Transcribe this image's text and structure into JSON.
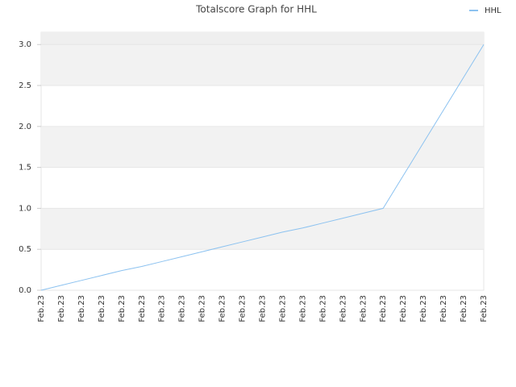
{
  "chart_data": {
    "type": "line",
    "title": "Totalscore Graph for HHL",
    "categories": [
      "Feb.23",
      "Feb.23",
      "Feb.23",
      "Feb.23",
      "Feb.23",
      "Feb.23",
      "Feb.23",
      "Feb.23",
      "Feb.23",
      "Feb.23",
      "Feb.23",
      "Feb.23",
      "Feb.23",
      "Feb.23",
      "Feb.23",
      "Feb.23",
      "Feb.23",
      "Feb.23",
      "Feb.23",
      "Feb.23",
      "Feb.23",
      "Feb.23",
      "Feb.23"
    ],
    "series": [
      {
        "name": "HHL",
        "color": "#8cc2f0",
        "values": [
          0,
          0.06,
          0.12,
          0.18,
          0.24,
          0.29,
          0.35,
          0.41,
          0.47,
          0.53,
          0.59,
          0.65,
          0.71,
          0.76,
          0.82,
          0.88,
          0.94,
          1,
          1.4,
          1.8,
          2.2,
          2.6,
          3
        ]
      }
    ],
    "ylim": [
      0,
      3.15
    ],
    "yticks": [
      {
        "value": 0,
        "label": "0.0"
      },
      {
        "value": 0.5,
        "label": "0.5"
      },
      {
        "value": 1,
        "label": "1.0"
      },
      {
        "value": 1.5,
        "label": "1.5"
      },
      {
        "value": 2,
        "label": "2.0"
      },
      {
        "value": 2.5,
        "label": "2.5"
      },
      {
        "value": 3,
        "label": "3.0"
      }
    ],
    "grid": true,
    "legend": "top-right"
  }
}
